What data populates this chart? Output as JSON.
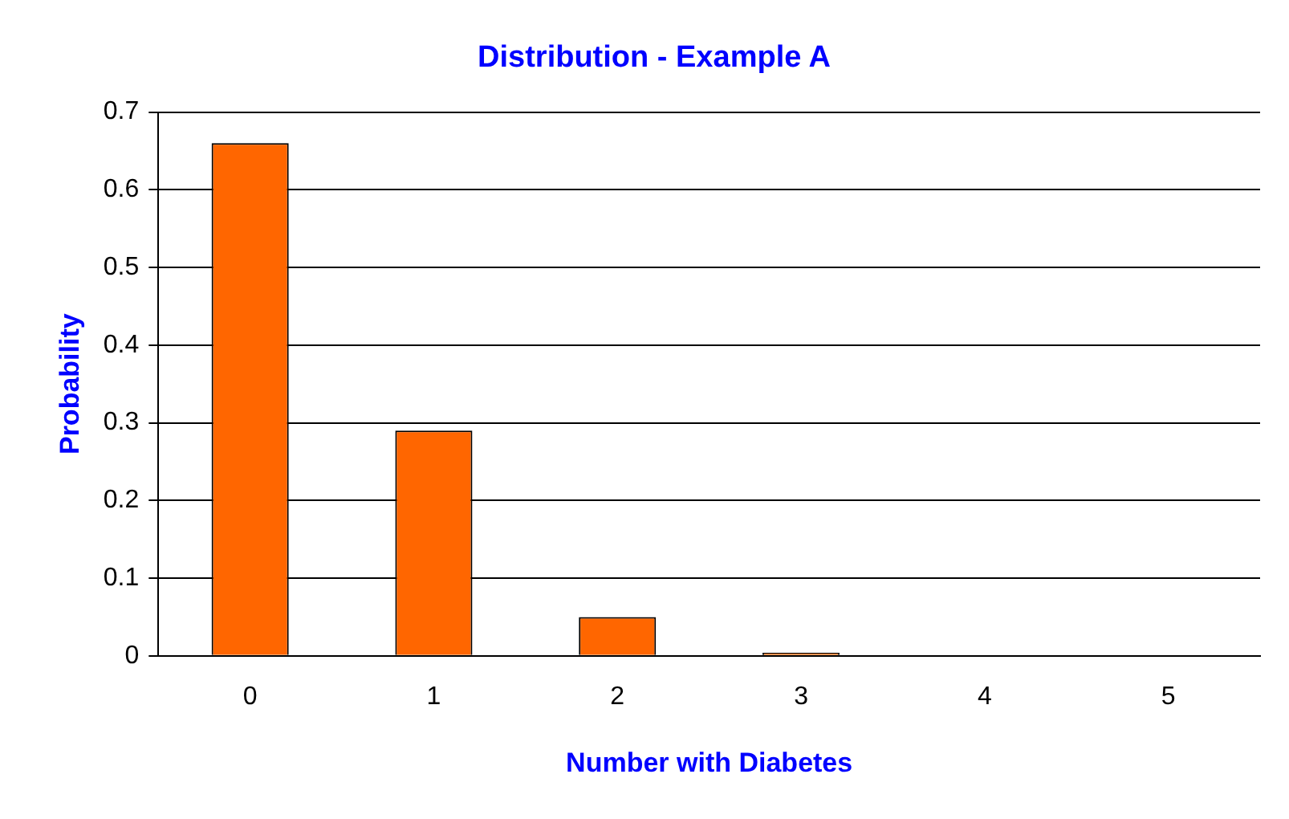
{
  "chart_data": {
    "type": "bar",
    "title": "Distribution - Example A",
    "xlabel": "Number with Diabetes",
    "ylabel": "Probability",
    "categories": [
      "0",
      "1",
      "2",
      "3",
      "4",
      "5"
    ],
    "values": [
      0.66,
      0.29,
      0.05,
      0.004,
      0,
      0
    ],
    "color": "#ff6600",
    "ylim": [
      0,
      0.7
    ],
    "yticks": [
      0,
      0.1,
      0.2,
      0.3,
      0.4,
      0.5,
      0.6,
      0.7
    ],
    "grid": "y",
    "legend": false
  }
}
